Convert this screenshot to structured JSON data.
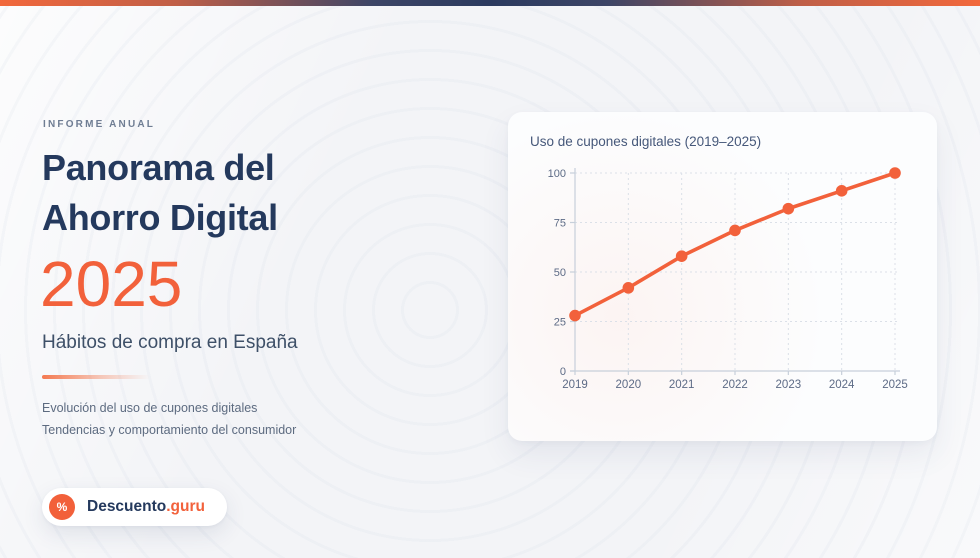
{
  "hero": {
    "kicker": "INFORME ANUAL",
    "title_line1": "Panorama del",
    "title_line2": "Ahorro Digital",
    "year": "2025",
    "subtitle": "Hábitos de compra en España",
    "notes": [
      "Evolución del uso de cupones digitales",
      "Tendencias y comportamiento del consumidor"
    ]
  },
  "brand": {
    "icon": "%",
    "name": "Descuento",
    "suffix": ".guru"
  },
  "chart_card": {
    "title": "Uso de cupones digitales (2019–2025)"
  },
  "chart_data": {
    "type": "line",
    "title": "Uso de cupones digitales (2019–2025)",
    "x": [
      "2019",
      "2020",
      "2021",
      "2022",
      "2023",
      "2024",
      "2025"
    ],
    "values": [
      28,
      42,
      58,
      71,
      82,
      91,
      100
    ],
    "ylim": [
      0,
      100
    ],
    "yticks": [
      0,
      25,
      50,
      75,
      100
    ],
    "grid": true,
    "legend": "none",
    "line_color": "#F2613B",
    "marker": "circle"
  },
  "colors": {
    "accent_orange": "#F2613B",
    "navy": "#24395D",
    "slate": "#3E5068",
    "muted_text": "#5D6B80",
    "axis_label": "#5D6B86",
    "axis_line": "#C7CFDA",
    "gridline": "#DBE0E8",
    "card_bg": "#FCFDFE",
    "page_bg": "#F3F4F7"
  }
}
